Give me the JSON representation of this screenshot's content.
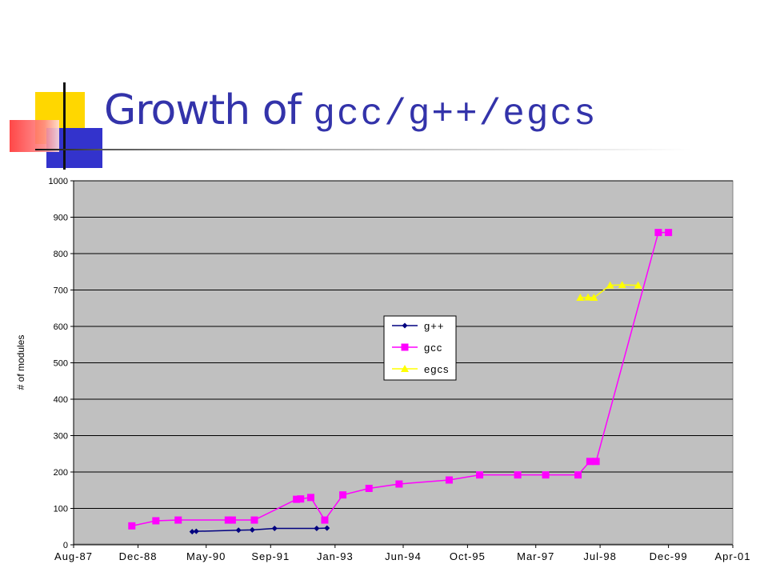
{
  "slide": {
    "title_prefix": "Growth of ",
    "title_code": "gcc/g++/egcs"
  },
  "chart_data": {
    "type": "line",
    "title": "",
    "xlabel": "",
    "ylabel": "# of modules",
    "ylim": [
      0,
      1000
    ],
    "yticks": [
      0,
      100,
      200,
      300,
      400,
      500,
      600,
      700,
      800,
      900,
      1000
    ],
    "xlim": [
      "1987-08-01",
      "2001-04-01"
    ],
    "xtick_labels": [
      "Aug-87",
      "Dec-88",
      "May-90",
      "Sep-91",
      "Jan-93",
      "Jun-94",
      "Oct-95",
      "Mar-97",
      "Jul-98",
      "Dec-99",
      "Apr-01"
    ],
    "xtick_dates": [
      "1987-08-01",
      "1988-12-01",
      "1990-05-01",
      "1991-09-01",
      "1993-01-01",
      "1994-06-01",
      "1995-10-01",
      "1997-03-01",
      "1998-07-01",
      "1999-12-01",
      "2001-04-01"
    ],
    "grid": "horizontal",
    "legend_position": "center",
    "plot_background": "#c0c0c0",
    "series": [
      {
        "name": "g++",
        "color": "#000080",
        "marker": "diamond",
        "points": [
          [
            "1990-01-15",
            36
          ],
          [
            "1990-02-15",
            37
          ],
          [
            "1991-01-01",
            40
          ],
          [
            "1991-04-15",
            41
          ],
          [
            "1991-10-01",
            45
          ],
          [
            "1992-08-15",
            45
          ],
          [
            "1992-11-01",
            46
          ]
        ]
      },
      {
        "name": "gcc",
        "color": "#ff00ff",
        "marker": "square",
        "points": [
          [
            "1988-10-15",
            52
          ],
          [
            "1989-04-15",
            66
          ],
          [
            "1989-10-01",
            68
          ],
          [
            "1990-10-15",
            68
          ],
          [
            "1990-11-15",
            68
          ],
          [
            "1991-05-01",
            68
          ],
          [
            "1992-03-15",
            125
          ],
          [
            "1992-04-15",
            126
          ],
          [
            "1992-07-01",
            130
          ],
          [
            "1992-10-15",
            68
          ],
          [
            "1993-03-01",
            137
          ],
          [
            "1993-09-15",
            155
          ],
          [
            "1994-05-01",
            167
          ],
          [
            "1995-05-15",
            178
          ],
          [
            "1996-01-01",
            192
          ],
          [
            "1996-10-15",
            192
          ],
          [
            "1997-05-15",
            192
          ],
          [
            "1998-01-15",
            192
          ],
          [
            "1998-04-15",
            229
          ],
          [
            "1998-06-01",
            229
          ],
          [
            "1999-09-15",
            858
          ],
          [
            "1999-12-01",
            858
          ]
        ]
      },
      {
        "name": "egcs",
        "color": "#ffff00",
        "marker": "triangle",
        "points": [
          [
            "1998-02-01",
            679
          ],
          [
            "1998-04-01",
            680
          ],
          [
            "1998-05-15",
            679
          ],
          [
            "1998-09-15",
            713
          ],
          [
            "1998-12-15",
            714
          ],
          [
            "1999-04-15",
            713
          ]
        ]
      }
    ]
  }
}
